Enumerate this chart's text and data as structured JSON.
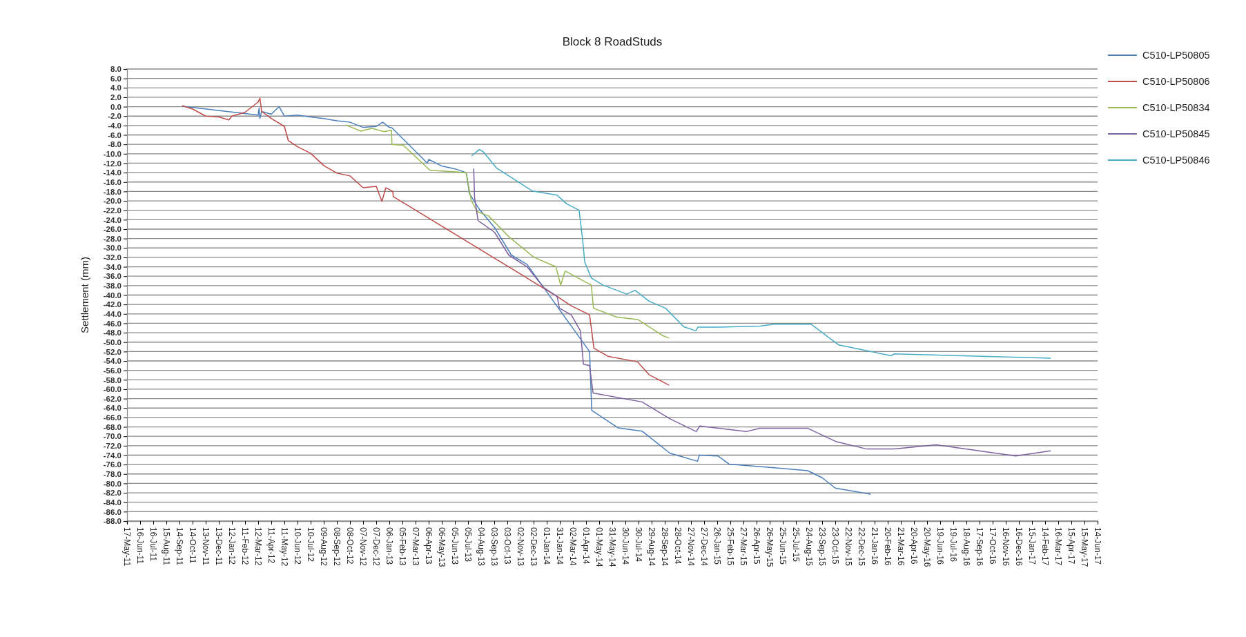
{
  "chart_data": {
    "type": "line",
    "title": "Block 8 RoadStuds",
    "ylabel": "Settlement (mm)",
    "grid": "y",
    "legend": "right",
    "marker": "none",
    "line_style": "solid",
    "xlim": [
      "2011-05-17",
      "2017-06-14"
    ],
    "ylim": [
      -88,
      8
    ],
    "xticks": [
      {
        "value": "2011-05-17",
        "label": "17-May-11"
      },
      {
        "value": "2011-06-16",
        "label": "16-Jun-11"
      },
      {
        "value": "2011-07-16",
        "label": "16-Jul-11"
      },
      {
        "value": "2011-08-15",
        "label": "15-Aug-11"
      },
      {
        "value": "2011-09-14",
        "label": "14-Sep-11"
      },
      {
        "value": "2011-10-14",
        "label": "14-Oct-11"
      },
      {
        "value": "2011-11-13",
        "label": "13-Nov-11"
      },
      {
        "value": "2011-12-13",
        "label": "13-Dec-11"
      },
      {
        "value": "2012-01-12",
        "label": "12-Jan-12"
      },
      {
        "value": "2012-02-11",
        "label": "11-Feb-12"
      },
      {
        "value": "2012-03-12",
        "label": "12-Mar-12"
      },
      {
        "value": "2012-04-11",
        "label": "11-Apr-12"
      },
      {
        "value": "2012-05-11",
        "label": "11-May-12"
      },
      {
        "value": "2012-06-10",
        "label": "10-Jun-12"
      },
      {
        "value": "2012-07-10",
        "label": "10-Jul-12"
      },
      {
        "value": "2012-08-09",
        "label": "09-Aug-12"
      },
      {
        "value": "2012-09-08",
        "label": "08-Sep-12"
      },
      {
        "value": "2012-10-08",
        "label": "08-Oct-12"
      },
      {
        "value": "2012-11-07",
        "label": "07-Nov-12"
      },
      {
        "value": "2012-12-07",
        "label": "07-Dec-12"
      },
      {
        "value": "2013-01-06",
        "label": "06-Jan-13"
      },
      {
        "value": "2013-02-05",
        "label": "05-Feb-13"
      },
      {
        "value": "2013-03-07",
        "label": "07-Mar-13"
      },
      {
        "value": "2013-04-06",
        "label": "06-Apr-13"
      },
      {
        "value": "2013-05-06",
        "label": "06-May-13"
      },
      {
        "value": "2013-06-05",
        "label": "05-Jun-13"
      },
      {
        "value": "2013-07-05",
        "label": "05-Jul-13"
      },
      {
        "value": "2013-08-04",
        "label": "04-Aug-13"
      },
      {
        "value": "2013-09-03",
        "label": "03-Sep-13"
      },
      {
        "value": "2013-10-03",
        "label": "03-Oct-13"
      },
      {
        "value": "2013-11-02",
        "label": "02-Nov-13"
      },
      {
        "value": "2013-12-02",
        "label": "02-Dec-13"
      },
      {
        "value": "2014-01-01",
        "label": "01-Jan-14"
      },
      {
        "value": "2014-01-31",
        "label": "31-Jan-14"
      },
      {
        "value": "2014-03-02",
        "label": "02-Mar-14"
      },
      {
        "value": "2014-04-01",
        "label": "01-Apr-14"
      },
      {
        "value": "2014-05-01",
        "label": "01-May-14"
      },
      {
        "value": "2014-05-31",
        "label": "31-May-14"
      },
      {
        "value": "2014-06-30",
        "label": "30-Jun-14"
      },
      {
        "value": "2014-07-30",
        "label": "30-Jul-14"
      },
      {
        "value": "2014-08-29",
        "label": "29-Aug-14"
      },
      {
        "value": "2014-09-28",
        "label": "28-Sep-14"
      },
      {
        "value": "2014-10-28",
        "label": "28-Oct-14"
      },
      {
        "value": "2014-11-27",
        "label": "27-Nov-14"
      },
      {
        "value": "2014-12-27",
        "label": "27-Dec-14"
      },
      {
        "value": "2015-01-26",
        "label": "26-Jan-15"
      },
      {
        "value": "2015-02-25",
        "label": "25-Feb-15"
      },
      {
        "value": "2015-03-27",
        "label": "27-Mar-15"
      },
      {
        "value": "2015-04-26",
        "label": "26-Apr-15"
      },
      {
        "value": "2015-05-26",
        "label": "26-May-15"
      },
      {
        "value": "2015-06-25",
        "label": "25-Jun-15"
      },
      {
        "value": "2015-07-25",
        "label": "25-Jul-15"
      },
      {
        "value": "2015-08-24",
        "label": "24-Aug-15"
      },
      {
        "value": "2015-09-23",
        "label": "23-Sep-15"
      },
      {
        "value": "2015-10-23",
        "label": "23-Oct-15"
      },
      {
        "value": "2015-11-22",
        "label": "22-Nov-15"
      },
      {
        "value": "2015-12-22",
        "label": "22-Dec-15"
      },
      {
        "value": "2016-01-21",
        "label": "21-Jan-16"
      },
      {
        "value": "2016-02-20",
        "label": "20-Feb-16"
      },
      {
        "value": "2016-03-21",
        "label": "21-Mar-16"
      },
      {
        "value": "2016-04-20",
        "label": "20-Apr-16"
      },
      {
        "value": "2016-05-20",
        "label": "20-May-16"
      },
      {
        "value": "2016-06-19",
        "label": "19-Jun-16"
      },
      {
        "value": "2016-07-19",
        "label": "19-Jul-16"
      },
      {
        "value": "2016-08-18",
        "label": "18-Aug-16"
      },
      {
        "value": "2016-09-17",
        "label": "17-Sep-16"
      },
      {
        "value": "2016-10-17",
        "label": "17-Oct-16"
      },
      {
        "value": "2016-11-16",
        "label": "16-Nov-16"
      },
      {
        "value": "2016-12-16",
        "label": "16-Dec-16"
      },
      {
        "value": "2017-01-15",
        "label": "15-Jan-17"
      },
      {
        "value": "2017-02-14",
        "label": "14-Feb-17"
      },
      {
        "value": "2017-03-16",
        "label": "16-Mar-17"
      },
      {
        "value": "2017-04-15",
        "label": "15-Apr-17"
      },
      {
        "value": "2017-05-15",
        "label": "15-May-17"
      },
      {
        "value": "2017-06-14",
        "label": "14-Jun-17"
      }
    ],
    "yticks": [
      {
        "value": 8,
        "label": "8.0"
      },
      {
        "value": 6,
        "label": "6.0"
      },
      {
        "value": 4,
        "label": "4.0"
      },
      {
        "value": 2,
        "label": "2.0"
      },
      {
        "value": 0,
        "label": "0.0"
      },
      {
        "value": -2,
        "label": "-2.0"
      },
      {
        "value": -4,
        "label": "-4.0"
      },
      {
        "value": -6,
        "label": "-6.0"
      },
      {
        "value": -8,
        "label": "-8.0"
      },
      {
        "value": -10,
        "label": "-10.0"
      },
      {
        "value": -12,
        "label": "-12.0"
      },
      {
        "value": -14,
        "label": "-14.0"
      },
      {
        "value": -16,
        "label": "-16.0"
      },
      {
        "value": -18,
        "label": "-18.0"
      },
      {
        "value": -20,
        "label": "-20.0"
      },
      {
        "value": -22,
        "label": "-22.0"
      },
      {
        "value": -24,
        "label": "-24.0"
      },
      {
        "value": -26,
        "label": "-26.0"
      },
      {
        "value": -28,
        "label": "-28.0"
      },
      {
        "value": -30,
        "label": "-30.0"
      },
      {
        "value": -32,
        "label": "-32.0"
      },
      {
        "value": -34,
        "label": "-34.0"
      },
      {
        "value": -36,
        "label": "-36.0"
      },
      {
        "value": -38,
        "label": "-38.0"
      },
      {
        "value": -40,
        "label": "-40.0"
      },
      {
        "value": -42,
        "label": "-42.0"
      },
      {
        "value": -44,
        "label": "-44.0"
      },
      {
        "value": -46,
        "label": "-46.0"
      },
      {
        "value": -48,
        "label": "-48.0"
      },
      {
        "value": -50,
        "label": "-50.0"
      },
      {
        "value": -52,
        "label": "-52.0"
      },
      {
        "value": -54,
        "label": "-54.0"
      },
      {
        "value": -56,
        "label": "-56.0"
      },
      {
        "value": -58,
        "label": "-58.0"
      },
      {
        "value": -60,
        "label": "-60.0"
      },
      {
        "value": -62,
        "label": "-62.0"
      },
      {
        "value": -64,
        "label": "-64.0"
      },
      {
        "value": -66,
        "label": "-66.0"
      },
      {
        "value": -68,
        "label": "-68.0"
      },
      {
        "value": -70,
        "label": "-70.0"
      },
      {
        "value": -72,
        "label": "-72.0"
      },
      {
        "value": -74,
        "label": "-74.0"
      },
      {
        "value": -76,
        "label": "-76.0"
      },
      {
        "value": -78,
        "label": "-78.0"
      },
      {
        "value": -80,
        "label": "-80.0"
      },
      {
        "value": -82,
        "label": "-82.0"
      },
      {
        "value": -84,
        "label": "-84.0"
      },
      {
        "value": -86,
        "label": "-86.0"
      },
      {
        "value": -88,
        "label": "-88.0"
      }
    ],
    "series": [
      {
        "name": "C510-LP50805",
        "color": "#4a7ebb",
        "x": [
          "2011-09-21",
          "2012-03-12",
          "2012-03-14",
          "2012-03-16",
          "2012-03-20",
          "2012-04-11",
          "2012-04-29",
          "2012-05-11",
          "2012-06-10",
          "2012-07-10",
          "2012-08-09",
          "2012-09-08",
          "2012-10-08",
          "2012-11-07",
          "2012-12-07",
          "2012-12-22",
          "2013-01-06",
          "2013-01-12",
          "2013-04-03",
          "2013-04-06",
          "2013-05-06",
          "2013-06-05",
          "2013-07-01",
          "2013-07-08",
          "2013-07-31",
          "2013-09-04",
          "2013-10-12",
          "2013-11-17",
          "2014-04-09",
          "2014-04-14",
          "2014-06-13",
          "2014-08-07",
          "2014-10-10",
          "2014-12-12",
          "2014-12-16",
          "2015-01-28",
          "2015-02-22",
          "2015-06-19",
          "2015-08-21",
          "2015-09-23",
          "2015-10-23",
          "2016-01-11"
        ],
        "values": [
          0.1,
          -1.8,
          -0.3,
          -2.5,
          -1.0,
          -1.6,
          0.0,
          -2.0,
          -1.8,
          -2.2,
          -2.5,
          -3.0,
          -3.3,
          -4.4,
          -4.2,
          -3.3,
          -4.4,
          -4.5,
          -12.0,
          -11.2,
          -12.6,
          -13.2,
          -14.0,
          -18.4,
          -21.8,
          -25.7,
          -31.5,
          -33.5,
          -52.0,
          -64.5,
          -68.2,
          -68.9,
          -73.6,
          -75.3,
          -74.0,
          -74.2,
          -75.9,
          -76.8,
          -77.3,
          -78.8,
          -81.0,
          -82.3
        ]
      },
      {
        "name": "C510-LP50806",
        "color": "#be4b48",
        "x": [
          "2011-09-21",
          "2011-10-14",
          "2011-11-13",
          "2011-12-13",
          "2012-01-05",
          "2012-01-12",
          "2012-02-11",
          "2012-03-12",
          "2012-03-16",
          "2012-03-20",
          "2012-04-11",
          "2012-05-11",
          "2012-05-20",
          "2012-06-10",
          "2012-07-10",
          "2012-08-09",
          "2012-09-08",
          "2012-10-08",
          "2012-11-07",
          "2012-12-07",
          "2012-12-20",
          "2012-12-29",
          "2013-01-14",
          "2013-01-15",
          "2014-01-25",
          "2014-02-26",
          "2014-04-09",
          "2014-04-19",
          "2014-05-21",
          "2014-07-28",
          "2014-08-23",
          "2014-10-07"
        ],
        "values": [
          0.2,
          -0.5,
          -2.0,
          -2.2,
          -2.8,
          -2.0,
          -1.2,
          1.0,
          1.8,
          -1.0,
          -2.5,
          -4.2,
          -7.2,
          -8.5,
          -9.9,
          -12.5,
          -14.1,
          -14.7,
          -17.2,
          -16.9,
          -20.1,
          -17.2,
          -18.0,
          -19.1,
          -40.3,
          -42.3,
          -44.2,
          -51.3,
          -53.0,
          -54.2,
          -56.9,
          -59.1
        ]
      },
      {
        "name": "C510-LP50834",
        "color": "#98b954",
        "x": [
          "2012-09-29",
          "2012-11-02",
          "2012-11-27",
          "2012-12-25",
          "2013-01-11",
          "2013-01-12",
          "2013-02-07",
          "2013-04-09",
          "2013-06-30",
          "2013-07-02",
          "2013-07-12",
          "2013-07-26",
          "2013-08-21",
          "2013-10-06",
          "2013-12-03",
          "2014-01-22",
          "2014-02-02",
          "2014-02-12",
          "2014-04-13",
          "2014-04-18",
          "2014-06-10",
          "2014-07-28",
          "2014-09-23",
          "2014-10-07"
        ],
        "values": [
          -3.9,
          -5.2,
          -4.6,
          -5.3,
          -5.0,
          -8.0,
          -8.2,
          -13.5,
          -14.0,
          -14.6,
          -19.8,
          -22.3,
          -23.2,
          -27.6,
          -32.0,
          -34.0,
          -37.9,
          -34.9,
          -37.9,
          -42.8,
          -44.7,
          -45.2,
          -48.6,
          -49.1
        ]
      },
      {
        "name": "C510-LP50845",
        "color": "#7d60a0",
        "x": [
          "2013-07-18",
          "2013-07-20",
          "2013-07-28",
          "2013-09-04",
          "2013-10-06",
          "2013-11-17",
          "2013-12-25",
          "2014-01-25",
          "2014-01-30",
          "2014-02-26",
          "2014-03-19",
          "2014-03-26",
          "2014-04-09",
          "2014-04-17",
          "2014-08-07",
          "2014-10-10",
          "2014-12-09",
          "2014-12-17",
          "2015-04-02",
          "2015-05-04",
          "2015-08-21",
          "2015-10-24",
          "2016-01-03",
          "2016-03-06",
          "2016-06-10",
          "2016-12-09",
          "2017-02-26"
        ],
        "values": [
          -13.2,
          -19.3,
          -24.2,
          -26.7,
          -31.5,
          -34.0,
          -38.4,
          -40.3,
          -42.8,
          -44.2,
          -47.6,
          -54.7,
          -55.0,
          -60.8,
          -62.7,
          -66.3,
          -69.0,
          -67.8,
          -69.0,
          -68.3,
          -68.3,
          -71.1,
          -72.7,
          -72.7,
          -71.8,
          -74.2,
          -73.1
        ]
      },
      {
        "name": "C510-LP50846",
        "color": "#46aac5",
        "x": [
          "2013-07-14",
          "2013-07-31",
          "2013-08-09",
          "2013-09-08",
          "2013-11-29",
          "2014-01-25",
          "2014-02-15",
          "2014-03-16",
          "2014-03-24",
          "2014-03-29",
          "2014-04-13",
          "2014-05-10",
          "2014-07-03",
          "2014-07-22",
          "2014-08-23",
          "2014-09-30",
          "2014-11-10",
          "2014-12-08",
          "2014-12-13",
          "2015-02-01",
          "2015-05-04",
          "2015-06-05",
          "2015-08-29",
          "2015-10-31",
          "2016-02-28",
          "2016-03-05",
          "2017-02-26"
        ],
        "values": [
          -10.4,
          -9.1,
          -9.6,
          -13.0,
          -17.9,
          -18.8,
          -20.6,
          -22.0,
          -28.1,
          -33.0,
          -36.4,
          -37.9,
          -39.8,
          -39.0,
          -41.3,
          -42.8,
          -46.7,
          -47.6,
          -46.8,
          -46.8,
          -46.6,
          -46.2,
          -46.2,
          -50.6,
          -52.9,
          -52.5,
          -53.4
        ]
      }
    ]
  }
}
